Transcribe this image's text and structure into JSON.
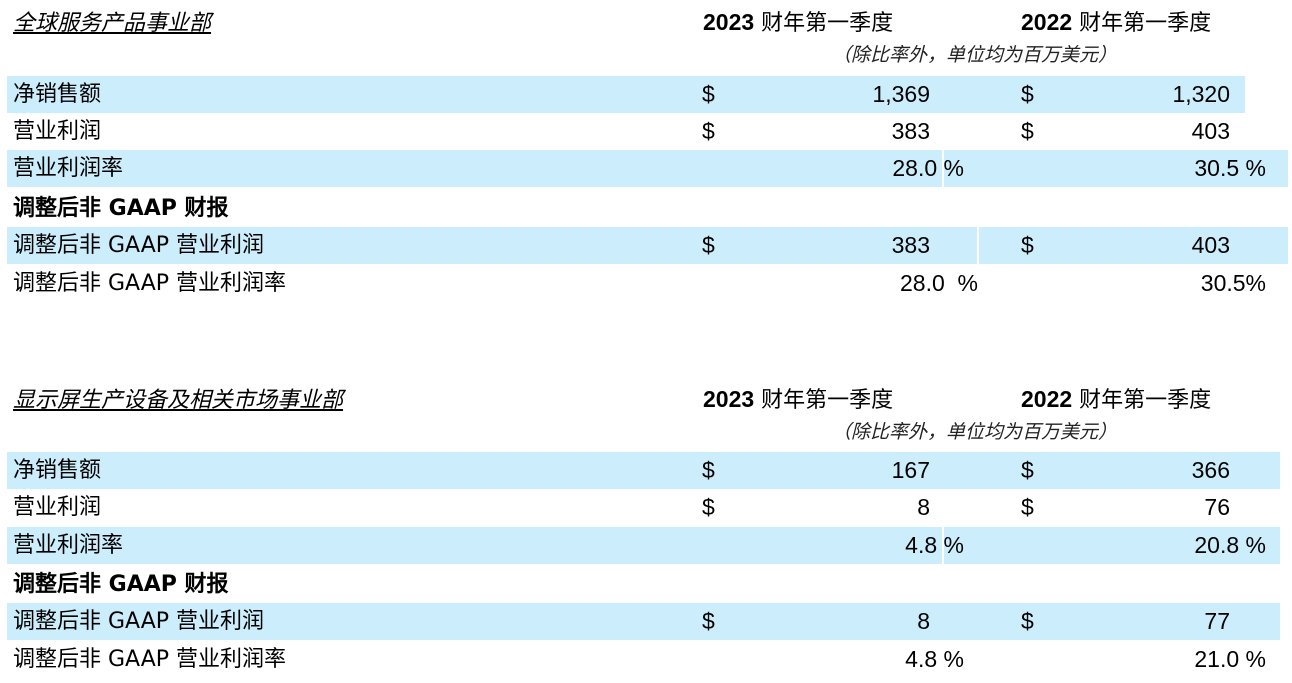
{
  "colors": {
    "row_highlight": "#cceefc"
  },
  "sections": [
    {
      "title": "全球服务产品事业部",
      "col_header_1": {
        "year": "2023",
        "text": " 财年第一季度"
      },
      "col_header_2": {
        "year": "2022",
        "text": " 财年第一季度"
      },
      "subtitle": "（除比率外，单位均为百万美元）",
      "rows": [
        {
          "label": "净销售额",
          "dollar1": "$",
          "v1": "1,369",
          "dollar2": "$",
          "v2": "1,320"
        },
        {
          "label": "营业利润",
          "dollar1": "$",
          "v1": "383",
          "dollar2": "$",
          "v2": "403"
        },
        {
          "label": "营业利润率",
          "dollar1": "",
          "v1": "28.0 %",
          "dollar2": "",
          "v2": "30.5 %"
        },
        {
          "label": "调整后非 GAAP 财报",
          "dollar1": "",
          "v1": "",
          "dollar2": "",
          "v2": ""
        },
        {
          "label": "调整后非 GAAP 营业利润",
          "dollar1": "$",
          "v1": "383",
          "dollar2": "$",
          "v2": "403"
        },
        {
          "label": "调整后非 GAAP 营业利润率",
          "dollar1": "",
          "v1": "28.0  %",
          "dollar2": "",
          "v2": "30.5%"
        }
      ]
    },
    {
      "title": "显示屏生产设备及相关市场事业部",
      "col_header_1": {
        "year": "2023",
        "text": " 财年第一季度"
      },
      "col_header_2": {
        "year": "2022",
        "text": " 财年第一季度"
      },
      "subtitle": "（除比率外，单位均为百万美元）",
      "rows": [
        {
          "label": "净销售额",
          "dollar1": "$",
          "v1": "167",
          "dollar2": "$",
          "v2": "366"
        },
        {
          "label": "营业利润",
          "dollar1": "$",
          "v1": "8",
          "dollar2": "$",
          "v2": "76"
        },
        {
          "label": "营业利润率",
          "dollar1": "",
          "v1": "4.8 %",
          "dollar2": "",
          "v2": "20.8 %"
        },
        {
          "label": "调整后非 GAAP 财报",
          "dollar1": "",
          "v1": "",
          "dollar2": "",
          "v2": ""
        },
        {
          "label": "调整后非 GAAP 营业利润",
          "dollar1": "$",
          "v1": "8",
          "dollar2": "$",
          "v2": "77"
        },
        {
          "label": "调整后非 GAAP 营业利润率",
          "dollar1": "",
          "v1": "4.8 %",
          "dollar2": "",
          "v2": "21.0 %"
        }
      ]
    }
  ]
}
